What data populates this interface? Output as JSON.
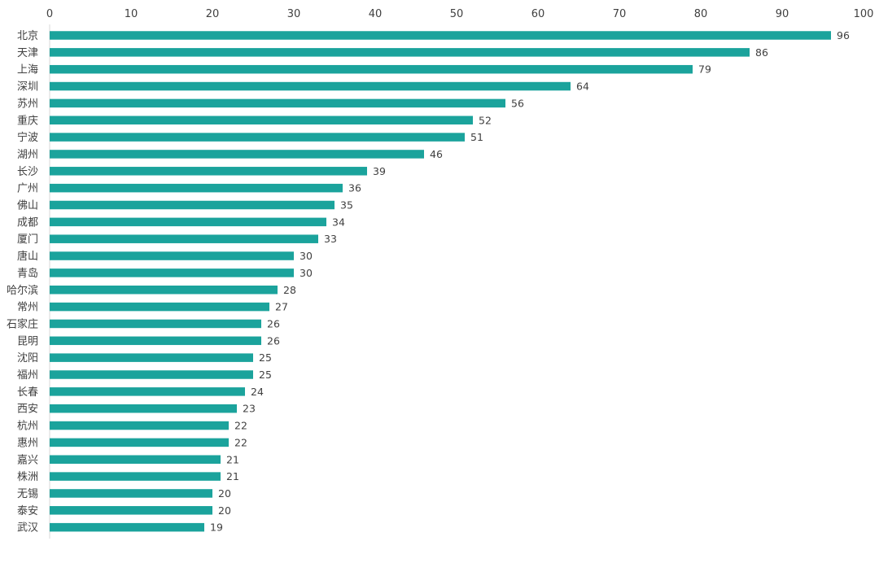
{
  "chart_data": {
    "type": "bar",
    "orientation": "horizontal",
    "title": "",
    "xlabel": "",
    "ylabel": "",
    "xlim": [
      0,
      100
    ],
    "x_ticks": [
      0,
      10,
      20,
      30,
      40,
      50,
      60,
      70,
      80,
      90,
      100
    ],
    "x_axis_position": "top",
    "grid": false,
    "legend": "none",
    "bar_color": "#1BA39C",
    "categories": [
      "北京",
      "天津",
      "上海",
      "深圳",
      "苏州",
      "重庆",
      "宁波",
      "湖州",
      "长沙",
      "广州",
      "佛山",
      "成都",
      "厦门",
      "唐山",
      "青岛",
      "哈尔滨",
      "常州",
      "石家庄",
      "昆明",
      "沈阳",
      "福州",
      "长春",
      "西安",
      "杭州",
      "惠州",
      "嘉兴",
      "株洲",
      "无锡",
      "泰安",
      "武汉"
    ],
    "values": [
      96,
      86,
      79,
      64,
      56,
      52,
      51,
      46,
      39,
      36,
      35,
      34,
      33,
      30,
      30,
      28,
      27,
      26,
      26,
      25,
      25,
      24,
      23,
      22,
      22,
      21,
      21,
      20,
      20,
      19
    ],
    "data_labels": true
  }
}
